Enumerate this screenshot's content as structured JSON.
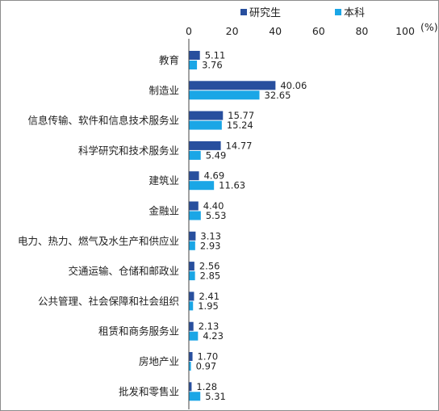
{
  "chart_data": {
    "type": "bar",
    "orientation": "horizontal",
    "title": "",
    "xlabel": "",
    "ylabel": "",
    "unit": "(%)",
    "xlim": [
      0,
      100
    ],
    "xticks": [
      0,
      20,
      40,
      60,
      80,
      100
    ],
    "grid": false,
    "legend": "top-right",
    "categories": [
      "教育",
      "制造业",
      "信息传输、软件和信息技术服务业",
      "科学研究和技术服务业",
      "建筑业",
      "金融业",
      "电力、热力、燃气及水生产和供应业",
      "交通运输、仓储和邮政业",
      "公共管理、社会保障和社会组织",
      "租赁和商务服务业",
      "房地产业",
      "批发和零售业"
    ],
    "series": [
      {
        "name": "研究生",
        "color": "#284f9e",
        "values": [
          5.11,
          40.06,
          15.77,
          14.77,
          4.69,
          4.4,
          3.13,
          2.56,
          2.41,
          2.13,
          1.7,
          1.28
        ],
        "labels": [
          "5.11",
          "40.06",
          "15.77",
          "14.77",
          "4.69",
          "4.40",
          "3.13",
          "2.56",
          "2.41",
          "2.13",
          "1.70",
          "1.28"
        ]
      },
      {
        "name": "本科",
        "color": "#1aa6e6",
        "values": [
          3.76,
          32.65,
          15.24,
          5.49,
          11.63,
          5.53,
          2.93,
          2.85,
          1.95,
          4.23,
          0.97,
          5.31
        ],
        "labels": [
          "3.76",
          "32.65",
          "15.24",
          "5.49",
          "11.63",
          "5.53",
          "2.93",
          "2.85",
          "1.95",
          "4.23",
          "0.97",
          "5.31"
        ]
      }
    ]
  }
}
